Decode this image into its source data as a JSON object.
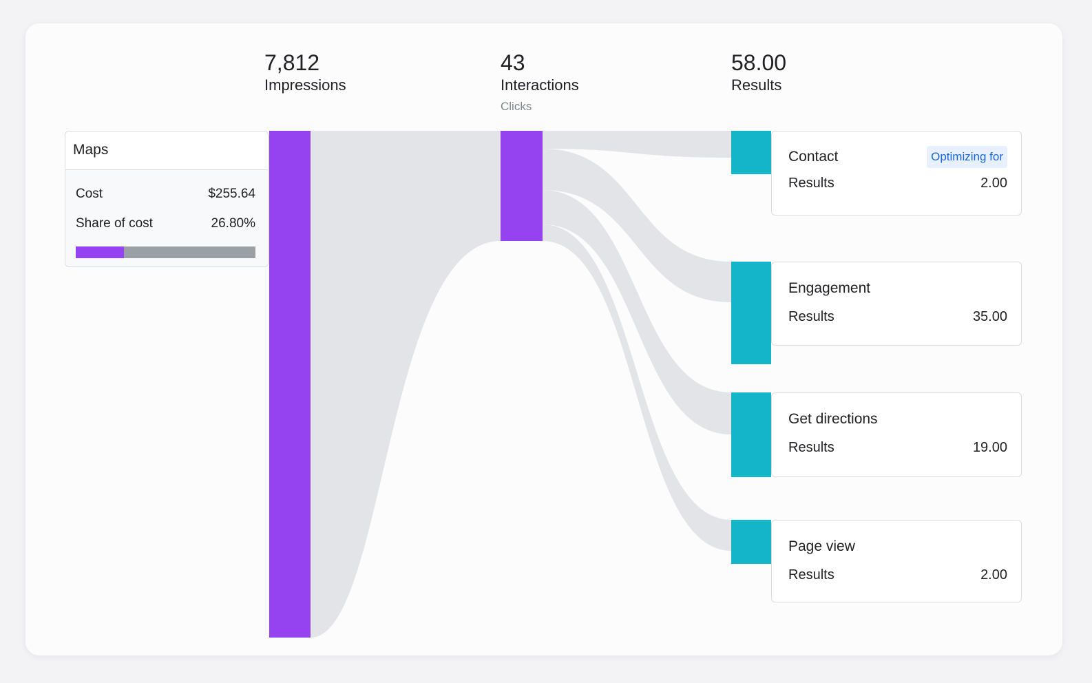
{
  "metrics": {
    "impressions": {
      "value": "7,812",
      "label": "Impressions"
    },
    "interactions": {
      "value": "43",
      "label": "Interactions",
      "sublabel": "Clicks"
    },
    "results": {
      "value": "58.00",
      "label": "Results"
    }
  },
  "source": {
    "title": "Maps",
    "cost_label": "Cost",
    "cost_value": "$255.64",
    "share_label": "Share of cost",
    "share_value": "26.80%",
    "share_fraction": 0.268
  },
  "result_items": [
    {
      "name": "Contact",
      "results_label": "Results",
      "results_value": "2.00",
      "badge": "Optimizing for"
    },
    {
      "name": "Engagement",
      "results_label": "Results",
      "results_value": "35.00"
    },
    {
      "name": "Get directions",
      "results_label": "Results",
      "results_value": "19.00"
    },
    {
      "name": "Page view",
      "results_label": "Results",
      "results_value": "2.00"
    }
  ],
  "colors": {
    "impressions_bar": "#9542f0",
    "interactions_bar": "#9542f0",
    "result_bar": "#14b4c9",
    "flow": "#e3e4e8",
    "share_fill": "#9542f0",
    "share_track": "#9aa0a6",
    "badge_bg": "#e8f0fe",
    "badge_text": "#1967d2"
  }
}
